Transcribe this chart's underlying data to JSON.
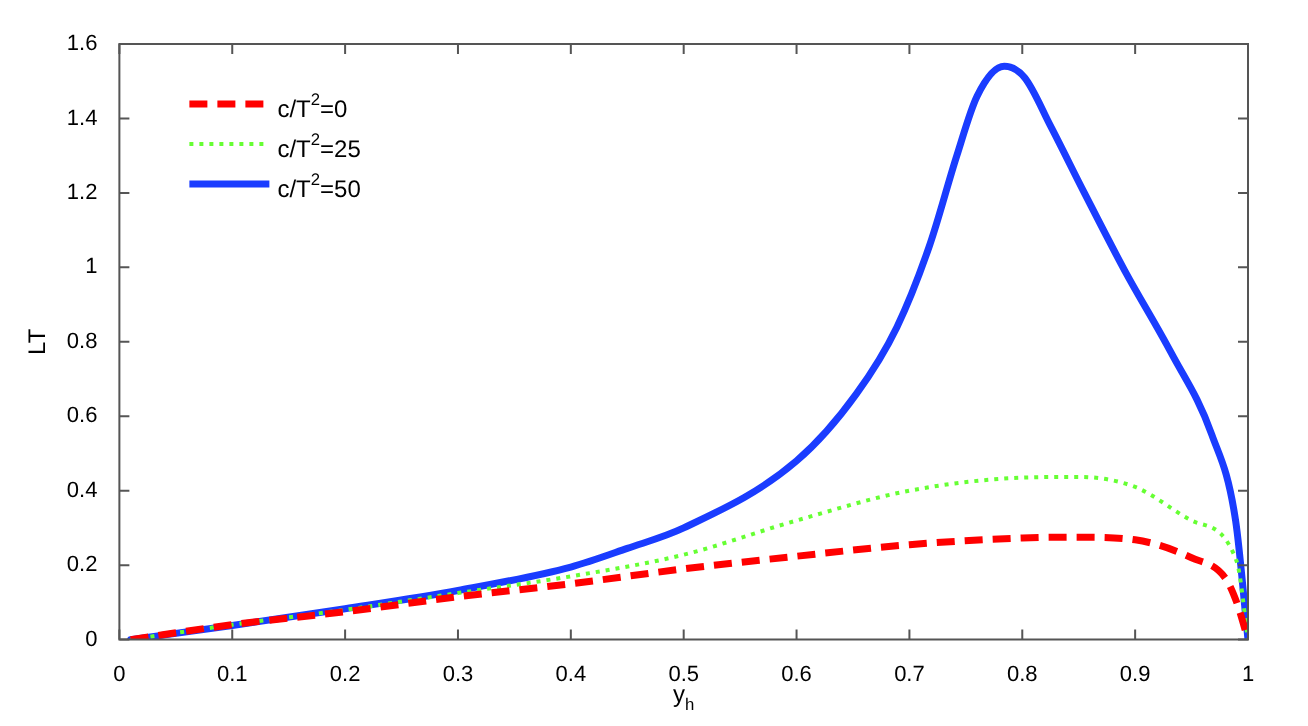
{
  "chart_data": {
    "type": "line",
    "xlabel": "y$_{h}$",
    "ylabel": "LT",
    "xlim": [
      0,
      1
    ],
    "ylim": [
      0,
      1.6
    ],
    "xticks": [
      0,
      0.1,
      0.2,
      0.3,
      0.4,
      0.5,
      0.6,
      0.7,
      0.8,
      0.9,
      1
    ],
    "yticks": [
      0,
      0.2,
      0.4,
      0.6,
      0.8,
      1,
      1.2,
      1.4,
      1.6
    ],
    "grid": false,
    "legend": "top left",
    "marker": "none",
    "series": [
      {
        "name": "c/T$^{2}$=0",
        "color": "#ff0000",
        "line_style": "dashed",
        "x": [
          0.01,
          0.1,
          0.2,
          0.3,
          0.4,
          0.5,
          0.6,
          0.7,
          0.8,
          0.85,
          0.9,
          0.95,
          0.98,
          0.99,
          1.0
        ],
        "values": [
          0,
          0.04,
          0.075,
          0.115,
          0.15,
          0.19,
          0.224,
          0.255,
          0.273,
          0.275,
          0.268,
          0.22,
          0.165,
          0.1,
          0
        ]
      },
      {
        "name": "c/T$^{2}$=25",
        "color": "#66ff33",
        "line_style": "dotted",
        "x": [
          0.01,
          0.1,
          0.2,
          0.3,
          0.4,
          0.5,
          0.6,
          0.7,
          0.8,
          0.85,
          0.9,
          0.95,
          0.99,
          1.0
        ],
        "values": [
          0,
          0.04,
          0.08,
          0.125,
          0.17,
          0.228,
          0.32,
          0.4,
          0.435,
          0.437,
          0.41,
          0.32,
          0.21,
          0
        ]
      },
      {
        "name": "c/T$^{2}$=50",
        "color": "#1a3cff",
        "line_style": "solid",
        "x": [
          0.01,
          0.1,
          0.2,
          0.3,
          0.4,
          0.45,
          0.5,
          0.6,
          0.653,
          0.689,
          0.718,
          0.742,
          0.76,
          0.784,
          0.802,
          0.825,
          0.855,
          0.891,
          0.932,
          0.968,
          0.989,
          1.0
        ],
        "values": [
          0,
          0.038,
          0.083,
          0.132,
          0.195,
          0.245,
          0.3,
          0.48,
          0.66,
          0.84,
          1.06,
          1.3,
          1.46,
          1.54,
          1.51,
          1.38,
          1.2,
          0.99,
          0.77,
          0.55,
          0.32,
          0
        ]
      }
    ]
  }
}
